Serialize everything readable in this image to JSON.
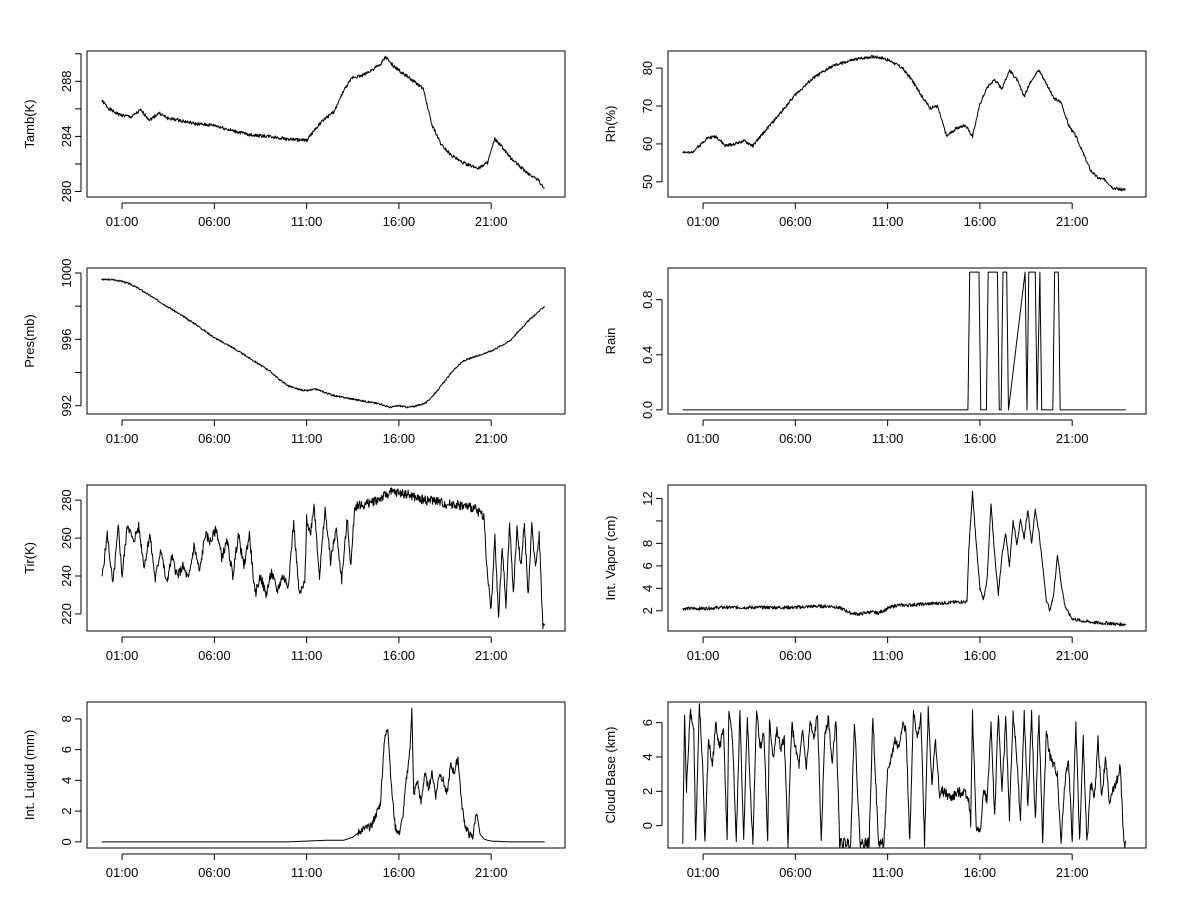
{
  "x_axis": {
    "tick_labels": [
      "01:00",
      "06:00",
      "11:00",
      "16:00",
      "21:00"
    ],
    "tick_hours": [
      1,
      6,
      11,
      16,
      21
    ],
    "xlim_hours": [
      -0.9,
      25.0
    ],
    "data_range_hours": [
      -0.1,
      23.9
    ]
  },
  "chart_data": [
    {
      "type": "line",
      "ylabel": "Tamb(K)",
      "ylim": [
        279.6,
        290.2
      ],
      "yticks": [
        280,
        284,
        288
      ],
      "minor_yticks": [
        282,
        286,
        290
      ],
      "x": [
        -0.1,
        0.3,
        0.8,
        1.5,
        2.0,
        2.5,
        3.0,
        3.5,
        4.0,
        5.0,
        6.0,
        7.0,
        8.0,
        9.0,
        10.0,
        11.0,
        11.5,
        12.0,
        12.5,
        13.0,
        13.5,
        14.0,
        14.5,
        15.0,
        15.3,
        15.5,
        15.8,
        16.3,
        16.8,
        17.3,
        17.8,
        18.3,
        18.8,
        19.3,
        19.8,
        20.3,
        20.8,
        21.2,
        21.6,
        22.0,
        22.5,
        23.0,
        23.5,
        23.9
      ],
      "y": [
        286.6,
        286.0,
        285.6,
        285.4,
        285.9,
        285.2,
        285.7,
        285.3,
        285.2,
        284.9,
        284.8,
        284.4,
        284.1,
        284.0,
        283.8,
        283.7,
        284.6,
        285.3,
        285.8,
        287.3,
        288.3,
        288.4,
        288.8,
        289.2,
        289.8,
        289.4,
        289.0,
        288.5,
        288.0,
        287.5,
        284.8,
        283.4,
        282.7,
        282.2,
        281.9,
        281.7,
        282.1,
        283.8,
        283.2,
        282.5,
        281.9,
        281.3,
        280.9,
        280.2
      ],
      "noise": 0.12,
      "seed": 1
    },
    {
      "type": "line",
      "ylabel": "Rh(%)",
      "ylim": [
        46.0,
        84.5
      ],
      "yticks": [
        50,
        60,
        70,
        80
      ],
      "minor_yticks": [],
      "x": [
        -0.1,
        0.3,
        0.8,
        1.2,
        1.7,
        2.2,
        2.7,
        3.2,
        3.7,
        4.2,
        5.0,
        6.0,
        7.0,
        8.0,
        9.0,
        9.8,
        10.3,
        10.8,
        11.3,
        11.8,
        12.3,
        12.8,
        13.3,
        13.7,
        14.2,
        14.7,
        15.2,
        15.6,
        16.0,
        16.4,
        16.8,
        17.2,
        17.6,
        18.0,
        18.4,
        18.8,
        19.2,
        19.6,
        20.0,
        20.4,
        20.8,
        21.2,
        21.6,
        22.0,
        22.4,
        22.8,
        23.2,
        23.6,
        23.9
      ],
      "y": [
        58.0,
        57.5,
        59.5,
        61.5,
        62.0,
        59.5,
        60.0,
        60.8,
        59.5,
        62.5,
        67.0,
        73.0,
        77.5,
        80.5,
        82.0,
        82.8,
        83.0,
        82.6,
        81.5,
        80.0,
        77.0,
        73.0,
        69.5,
        70.0,
        62.0,
        64.0,
        65.0,
        62.0,
        70.5,
        75.0,
        77.0,
        74.5,
        79.5,
        77.0,
        72.5,
        77.0,
        79.5,
        76.0,
        72.0,
        71.0,
        65.0,
        62.0,
        57.5,
        53.0,
        51.0,
        50.5,
        48.5,
        48.0,
        48.0
      ],
      "noise": 0.4,
      "seed": 2
    },
    {
      "type": "line",
      "ylabel": "Pres(mb)",
      "ylim": [
        991.5,
        1000.3
      ],
      "yticks": [
        992,
        996,
        1000
      ],
      "minor_yticks": [
        994,
        998
      ],
      "x": [
        -0.1,
        0.5,
        1.0,
        1.5,
        2.0,
        3.0,
        4.0,
        5.0,
        6.0,
        7.0,
        8.0,
        9.0,
        9.5,
        10.0,
        10.5,
        11.0,
        11.5,
        12.0,
        12.5,
        13.0,
        14.0,
        15.0,
        15.5,
        16.0,
        16.5,
        17.0,
        17.5,
        18.0,
        18.5,
        19.0,
        19.5,
        20.0,
        20.5,
        21.0,
        21.5,
        22.0,
        22.5,
        23.0,
        23.5,
        23.9
      ],
      "y": [
        999.6,
        999.6,
        999.5,
        999.3,
        999.0,
        998.3,
        997.6,
        996.9,
        996.1,
        995.5,
        994.8,
        994.1,
        993.6,
        993.2,
        993.0,
        992.9,
        993.0,
        992.8,
        992.6,
        992.5,
        992.3,
        992.1,
        991.9,
        992.0,
        991.9,
        992.0,
        992.2,
        992.8,
        993.5,
        994.2,
        994.7,
        994.9,
        995.1,
        995.3,
        995.6,
        995.9,
        996.5,
        997.1,
        997.6,
        998.0
      ],
      "noise": 0.05,
      "seed": 3
    },
    {
      "type": "line",
      "ylabel": "Rain",
      "ylim": [
        -0.03,
        1.03
      ],
      "yticks": [
        0.0,
        0.4,
        0.8
      ],
      "minor_yticks": [],
      "x": [
        -0.1,
        15.35,
        15.45,
        15.95,
        16.05,
        16.35,
        16.45,
        16.95,
        17.05,
        17.15,
        17.25,
        17.45,
        17.55,
        18.45,
        18.55,
        18.65,
        18.75,
        19.0,
        19.1,
        19.25,
        19.35,
        19.95,
        20.05,
        20.25,
        20.35,
        23.9
      ],
      "y": [
        0,
        0,
        1,
        1,
        0,
        0,
        1,
        1,
        0,
        0,
        1,
        1,
        0,
        1,
        0,
        1,
        1,
        1,
        0,
        1,
        0,
        0,
        1,
        1,
        0,
        0
      ],
      "noise": 0,
      "seed": 4
    },
    {
      "type": "line",
      "ylabel": "Tir(K)",
      "ylim": [
        211.0,
        288.0
      ],
      "yticks": [
        220,
        240,
        260,
        280
      ],
      "minor_yticks": [],
      "x": [
        -0.1,
        0.2,
        0.5,
        0.8,
        1.0,
        1.3,
        1.6,
        1.9,
        2.2,
        2.5,
        2.8,
        3.1,
        3.4,
        3.7,
        4.0,
        4.3,
        4.6,
        4.9,
        5.2,
        5.5,
        5.8,
        6.1,
        6.4,
        6.7,
        7.0,
        7.3,
        7.6,
        7.9,
        8.2,
        8.5,
        8.8,
        9.1,
        9.4,
        9.7,
        10.0,
        10.3,
        10.6,
        10.9,
        11.0,
        11.2,
        11.4,
        11.7,
        12.0,
        12.3,
        12.6,
        12.9,
        13.2,
        13.4,
        13.6,
        13.8,
        14.0,
        14.5,
        15.0,
        15.5,
        16.0,
        16.5,
        17.0,
        17.5,
        18.0,
        18.5,
        19.0,
        19.5,
        20.0,
        20.3,
        20.6,
        20.8,
        21.0,
        21.2,
        21.4,
        21.6,
        21.8,
        22.0,
        22.2,
        22.4,
        22.6,
        22.8,
        23.0,
        23.2,
        23.4,
        23.6,
        23.8,
        23.9
      ],
      "y": [
        238,
        262,
        235,
        266,
        240,
        268,
        258,
        266,
        245,
        262,
        238,
        255,
        236,
        250,
        240,
        245,
        238,
        256,
        242,
        262,
        258,
        265,
        250,
        258,
        240,
        262,
        245,
        262,
        230,
        240,
        230,
        242,
        232,
        240,
        235,
        268,
        230,
        236,
        270,
        262,
        278,
        240,
        275,
        248,
        265,
        238,
        270,
        245,
        276,
        278,
        277,
        279,
        281,
        284,
        284,
        283,
        281,
        280,
        280,
        278,
        278,
        277,
        276,
        274,
        272,
        240,
        222,
        260,
        218,
        255,
        225,
        268,
        230,
        266,
        245,
        268,
        230,
        266,
        245,
        262,
        214,
        214
      ],
      "noise": 2.5,
      "seed": 5
    },
    {
      "type": "line",
      "ylabel": "Int. Vapor (cm)",
      "ylim": [
        0.2,
        13.2
      ],
      "yticks": [
        2,
        4,
        6,
        8,
        12
      ],
      "minor_yticks": [
        10
      ],
      "x": [
        -0.1,
        1.0,
        2.0,
        3.0,
        4.0,
        5.0,
        6.0,
        7.0,
        8.0,
        8.5,
        9.0,
        9.5,
        10.0,
        10.5,
        11.0,
        11.5,
        12.0,
        13.0,
        14.0,
        15.0,
        15.3,
        15.4,
        15.6,
        15.8,
        16.0,
        16.2,
        16.4,
        16.6,
        16.8,
        17.0,
        17.2,
        17.4,
        17.6,
        17.8,
        18.0,
        18.2,
        18.4,
        18.6,
        18.8,
        19.0,
        19.2,
        19.4,
        19.6,
        19.8,
        20.0,
        20.2,
        20.4,
        20.6,
        20.8,
        21.0,
        21.5,
        22.0,
        22.5,
        23.0,
        23.5,
        23.9
      ],
      "y": [
        2.2,
        2.2,
        2.3,
        2.3,
        2.3,
        2.3,
        2.3,
        2.4,
        2.4,
        2.2,
        1.8,
        1.7,
        1.9,
        1.8,
        2.2,
        2.5,
        2.5,
        2.6,
        2.7,
        2.8,
        2.8,
        7.5,
        12.5,
        8.0,
        4.0,
        3.0,
        5.0,
        11.5,
        7.0,
        3.5,
        7.0,
        9.0,
        6.0,
        10.0,
        8.0,
        10.0,
        8.5,
        11.0,
        8.0,
        11.0,
        9.0,
        6.0,
        3.0,
        2.0,
        3.5,
        7.0,
        4.5,
        2.5,
        1.8,
        1.3,
        1.1,
        1.0,
        0.9,
        0.9,
        0.8,
        0.8
      ],
      "noise": 0.15,
      "seed": 6
    },
    {
      "type": "line",
      "ylabel": "Int. Liquid (mm)",
      "ylim": [
        -0.4,
        9.1
      ],
      "yticks": [
        0,
        2,
        4,
        6,
        8
      ],
      "minor_yticks": [],
      "x": [
        -0.1,
        5.0,
        10.0,
        11.0,
        12.0,
        13.0,
        13.5,
        14.0,
        14.5,
        15.0,
        15.2,
        15.4,
        15.6,
        15.8,
        16.0,
        16.2,
        16.4,
        16.6,
        16.7,
        16.8,
        17.0,
        17.2,
        17.4,
        17.6,
        17.8,
        18.0,
        18.2,
        18.4,
        18.6,
        18.8,
        19.0,
        19.2,
        19.4,
        19.6,
        19.8,
        20.0,
        20.2,
        20.4,
        20.6,
        20.8,
        21.0,
        22.0,
        23.0,
        23.9
      ],
      "y": [
        0,
        0,
        0,
        0.05,
        0.1,
        0.1,
        0.3,
        0.8,
        1.0,
        2.5,
        6.5,
        7.5,
        3.5,
        1.0,
        0.5,
        1.5,
        4.0,
        6.0,
        8.8,
        3.0,
        4.0,
        2.5,
        4.5,
        3.5,
        4.5,
        3.0,
        4.5,
        4.0,
        3.0,
        5.0,
        4.5,
        5.5,
        2.5,
        1.0,
        0.5,
        0.3,
        2.0,
        0.5,
        0.2,
        0.1,
        0.05,
        0,
        0,
        0
      ],
      "noise": 0.25,
      "noise_from_hour": 13.8,
      "noise_until_hour": 20.2,
      "floor": 0,
      "seed": 7
    },
    {
      "type": "line",
      "ylabel": "Cloud Base (km)",
      "ylim": [
        -1.3,
        7.2
      ],
      "yticks": [
        0,
        2,
        4,
        6
      ],
      "minor_yticks": [],
      "x": [
        -0.1,
        0.0,
        0.1,
        0.3,
        0.5,
        0.6,
        0.8,
        1.0,
        1.1,
        1.3,
        1.5,
        1.7,
        1.9,
        2.1,
        2.3,
        2.4,
        2.6,
        2.8,
        3.0,
        3.2,
        3.4,
        3.5,
        3.7,
        3.9,
        4.1,
        4.3,
        4.5,
        4.6,
        4.8,
        5.0,
        5.2,
        5.4,
        5.6,
        5.8,
        6.0,
        6.2,
        6.4,
        6.6,
        6.8,
        7.0,
        7.2,
        7.4,
        7.6,
        7.8,
        8.0,
        8.2,
        8.4,
        8.6,
        8.8,
        9.0,
        9.2,
        9.5,
        9.7,
        10.0,
        10.2,
        10.5,
        10.8,
        11.0,
        11.2,
        11.4,
        11.6,
        11.8,
        12.0,
        12.2,
        12.4,
        12.6,
        12.8,
        13.0,
        13.2,
        13.4,
        13.6,
        13.8,
        14.0,
        14.4,
        14.8,
        15.2,
        15.4,
        15.5,
        15.6,
        15.8,
        16.0,
        16.2,
        16.4,
        16.6,
        16.8,
        17.0,
        17.2,
        17.4,
        17.6,
        17.8,
        18.0,
        18.2,
        18.4,
        18.6,
        18.8,
        19.0,
        19.2,
        19.4,
        19.6,
        19.8,
        20.0,
        20.2,
        20.4,
        20.6,
        20.8,
        21.0,
        21.2,
        21.4,
        21.6,
        21.8,
        22.0,
        22.2,
        22.4,
        22.6,
        22.8,
        23.0,
        23.2,
        23.4,
        23.6,
        23.8,
        23.9
      ],
      "y": [
        -1.0,
        6.4,
        2.0,
        6.8,
        5.5,
        -1.0,
        7.0,
        3.0,
        -1.0,
        5.0,
        3.5,
        6.0,
        4.5,
        5.8,
        -1.0,
        6.5,
        5.0,
        -1.0,
        6.8,
        -1.0,
        6.5,
        3.5,
        -1.0,
        6.9,
        4.5,
        5.5,
        -1.0,
        6.0,
        4.0,
        5.5,
        4.5,
        5.0,
        -1.0,
        6.0,
        4.5,
        3.5,
        5.5,
        3.3,
        6.0,
        5.0,
        6.5,
        -1.0,
        5.5,
        6.2,
        3.5,
        6.3,
        -1.0,
        -1.0,
        -1.0,
        -1.0,
        6.2,
        -1.0,
        -1.0,
        -1.0,
        6.4,
        -1.0,
        -1.0,
        3.0,
        4.0,
        5.0,
        4.5,
        6.0,
        5.5,
        -1.0,
        6.6,
        5.0,
        6.5,
        -1.0,
        6.8,
        2.5,
        5.0,
        1.8,
        2.0,
        1.6,
        1.9,
        2.0,
        1.5,
        0.2,
        6.5,
        0.0,
        -0.5,
        2.0,
        1.5,
        6.0,
        0.5,
        6.5,
        2.0,
        6.2,
        0.5,
        6.5,
        4.0,
        0.3,
        6.5,
        1.0,
        6.5,
        0.2,
        6.5,
        -1.0,
        5.5,
        4.0,
        3.5,
        3.0,
        -1.0,
        2.5,
        4.0,
        -1.0,
        6.0,
        -1.0,
        5.0,
        -1.0,
        2.5,
        1.5,
        5.0,
        1.5,
        4.0,
        1.5,
        2.0,
        2.5,
        3.5,
        -1.0,
        -1.0
      ],
      "noise": 0.3,
      "seed": 8
    }
  ]
}
